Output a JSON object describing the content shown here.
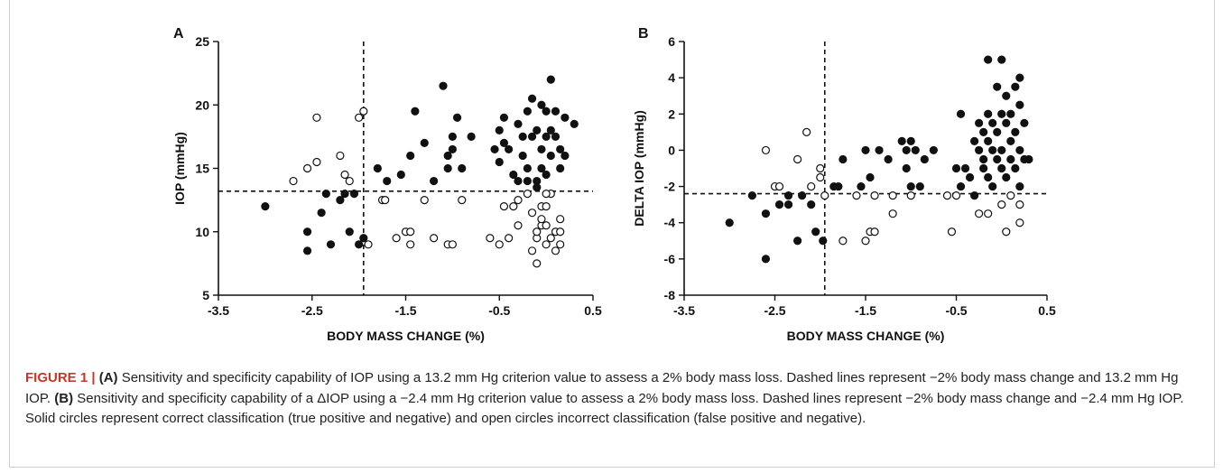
{
  "caption": {
    "label": "FIGURE 1 |",
    "a_tag": "(A)",
    "a_text": " Sensitivity and specificity capability of IOP using a 13.2 mm Hg criterion value to assess a 2% body mass loss. Dashed lines represent −2% body mass change and 13.2 mm Hg IOP. ",
    "b_tag": "(B)",
    "b_text": " Sensitivity and specificity capability of a ΔIOP using a −2.4 mm Hg criterion value to assess a 2% body mass loss. Dashed lines represent −2% body mass change and −2.4 mm Hg IOP. Solid circles represent correct classification (true positive and negative) and open circles incorrect classification (false positive and negative)."
  },
  "colors": {
    "filled": "#111111",
    "open": "#ffffff",
    "axis": "#111111"
  },
  "chart_data": [
    {
      "type": "scatter",
      "panel": "A",
      "xlabel": "BODY MASS CHANGE (%)",
      "ylabel": "IOP (mmHg)",
      "xlim": [
        -3.5,
        0.5
      ],
      "ylim": [
        5,
        25
      ],
      "xticks": [
        -3.5,
        -2.5,
        -1.5,
        -0.5,
        0.5
      ],
      "yticks": [
        5,
        10,
        15,
        20,
        25
      ],
      "xtick_labels": [
        "-3.5",
        "-2.5",
        "-1.5",
        "-0.5",
        "0.5"
      ],
      "ytick_labels": [
        "5",
        "10",
        "15",
        "20",
        "25"
      ],
      "reference_lines": {
        "x": -1.95,
        "y": 13.2
      },
      "grid": false,
      "series": [
        {
          "style": "filled",
          "points": [
            [
              -3.0,
              12.0
            ],
            [
              -2.55,
              10.0
            ],
            [
              -2.55,
              8.5
            ],
            [
              -2.4,
              11.5
            ],
            [
              -2.35,
              13.0
            ],
            [
              -2.3,
              9.0
            ],
            [
              -2.2,
              12.5
            ],
            [
              -2.15,
              13.0
            ],
            [
              -2.1,
              10.0
            ],
            [
              -2.05,
              13.0
            ],
            [
              -2.0,
              9.0
            ],
            [
              -1.95,
              9.5
            ],
            [
              -1.8,
              15.0
            ],
            [
              -1.7,
              14.0
            ],
            [
              -1.55,
              14.5
            ],
            [
              -1.45,
              16.0
            ],
            [
              -1.4,
              19.5
            ],
            [
              -1.3,
              17.0
            ],
            [
              -1.2,
              14.0
            ],
            [
              -1.1,
              21.5
            ],
            [
              -1.05,
              16.0
            ],
            [
              -1.05,
              15.0
            ],
            [
              -1.0,
              16.5
            ],
            [
              -1.0,
              17.5
            ],
            [
              -0.95,
              19.0
            ],
            [
              -0.9,
              15.0
            ],
            [
              -0.8,
              17.5
            ],
            [
              -0.55,
              16.5
            ],
            [
              -0.5,
              18.0
            ],
            [
              -0.5,
              15.5
            ],
            [
              -0.45,
              19.0
            ],
            [
              -0.45,
              17.0
            ],
            [
              -0.4,
              16.5
            ],
            [
              -0.35,
              14.5
            ],
            [
              -0.3,
              14.0
            ],
            [
              -0.3,
              18.5
            ],
            [
              -0.25,
              16.0
            ],
            [
              -0.2,
              19.5
            ],
            [
              -0.2,
              15.0
            ],
            [
              -0.15,
              20.5
            ],
            [
              -0.15,
              17.5
            ],
            [
              -0.1,
              14.0
            ],
            [
              -0.1,
              13.5
            ],
            [
              -0.05,
              20.0
            ],
            [
              -0.05,
              16.5
            ],
            [
              -0.05,
              15.0
            ],
            [
              0.0,
              19.5
            ],
            [
              0.0,
              17.5
            ],
            [
              0.0,
              14.5
            ],
            [
              0.05,
              22.0
            ],
            [
              0.05,
              18.0
            ],
            [
              0.05,
              16.0
            ],
            [
              0.1,
              19.5
            ],
            [
              0.1,
              17.5
            ],
            [
              0.15,
              16.5
            ],
            [
              0.15,
              15.0
            ],
            [
              0.2,
              19.0
            ],
            [
              0.2,
              16.0
            ],
            [
              0.3,
              18.5
            ],
            [
              -0.25,
              17.5
            ],
            [
              -0.1,
              18.0
            ],
            [
              -0.2,
              14.0
            ]
          ]
        },
        {
          "style": "open",
          "points": [
            [
              -2.7,
              14.0
            ],
            [
              -2.55,
              15.0
            ],
            [
              -2.45,
              19.0
            ],
            [
              -2.45,
              15.5
            ],
            [
              -2.2,
              16.0
            ],
            [
              -2.15,
              14.5
            ],
            [
              -2.1,
              14.0
            ],
            [
              -2.0,
              19.0
            ],
            [
              -1.95,
              19.5
            ],
            [
              -1.9,
              9.0
            ],
            [
              -1.75,
              12.5
            ],
            [
              -1.72,
              12.5
            ],
            [
              -1.6,
              9.5
            ],
            [
              -1.5,
              10.0
            ],
            [
              -1.45,
              10.0
            ],
            [
              -1.45,
              9.0
            ],
            [
              -1.3,
              12.5
            ],
            [
              -1.2,
              9.5
            ],
            [
              -1.05,
              9.0
            ],
            [
              -1.0,
              9.0
            ],
            [
              -0.9,
              12.5
            ],
            [
              -0.6,
              9.5
            ],
            [
              -0.5,
              9.0
            ],
            [
              -0.45,
              12.0
            ],
            [
              -0.4,
              9.5
            ],
            [
              -0.35,
              12.0
            ],
            [
              -0.3,
              10.5
            ],
            [
              -0.3,
              12.5
            ],
            [
              -0.2,
              13.0
            ],
            [
              -0.15,
              8.5
            ],
            [
              -0.1,
              9.5
            ],
            [
              -0.1,
              10.0
            ],
            [
              -0.1,
              7.5
            ],
            [
              -0.05,
              12.0
            ],
            [
              -0.05,
              10.5
            ],
            [
              0.0,
              12.0
            ],
            [
              0.0,
              9.0
            ],
            [
              0.0,
              10.5
            ],
            [
              0.05,
              9.5
            ],
            [
              0.05,
              13.0
            ],
            [
              0.1,
              10.0
            ],
            [
              0.1,
              8.5
            ],
            [
              0.15,
              11.0
            ],
            [
              0.15,
              9.0
            ],
            [
              0.15,
              10.0
            ],
            [
              -0.15,
              11.5
            ],
            [
              -0.05,
              11.0
            ],
            [
              0.0,
              13.0
            ]
          ]
        }
      ]
    },
    {
      "type": "scatter",
      "panel": "B",
      "xlabel": "BODY MASS CHANGE (%)",
      "ylabel": "DELTA IOP (mmHg)",
      "xlim": [
        -3.5,
        0.5
      ],
      "ylim": [
        -8,
        6
      ],
      "xticks": [
        -3.5,
        -2.5,
        -1.5,
        -0.5,
        0.5
      ],
      "yticks": [
        -8,
        -6,
        -4,
        -2,
        0,
        2,
        4,
        6
      ],
      "xtick_labels": [
        "-3.5",
        "-2.5",
        "-1.5",
        "-0.5",
        "0.5"
      ],
      "ytick_labels": [
        "-8",
        "-6",
        "-4",
        "-2",
        "0",
        "2",
        "4",
        "6"
      ],
      "reference_lines": {
        "x": -1.95,
        "y": -2.4
      },
      "grid": false,
      "series": [
        {
          "style": "filled",
          "points": [
            [
              -3.0,
              -4.0
            ],
            [
              -2.75,
              -2.5
            ],
            [
              -2.6,
              -3.5
            ],
            [
              -2.6,
              -6.0
            ],
            [
              -2.45,
              -3.0
            ],
            [
              -2.35,
              -2.5
            ],
            [
              -2.35,
              -3.0
            ],
            [
              -2.25,
              -5.0
            ],
            [
              -2.2,
              -2.5
            ],
            [
              -2.1,
              -3.0
            ],
            [
              -2.05,
              -4.5
            ],
            [
              -1.97,
              -5.0
            ],
            [
              -1.85,
              -2.0
            ],
            [
              -1.8,
              -2.0
            ],
            [
              -1.75,
              -0.5
            ],
            [
              -1.55,
              -2.0
            ],
            [
              -1.5,
              0.0
            ],
            [
              -1.45,
              -1.5
            ],
            [
              -1.35,
              0.0
            ],
            [
              -1.25,
              -0.5
            ],
            [
              -1.1,
              0.5
            ],
            [
              -1.05,
              -1.0
            ],
            [
              -1.05,
              0.0
            ],
            [
              -1.0,
              -2.0
            ],
            [
              -1.0,
              0.5
            ],
            [
              -0.95,
              0.0
            ],
            [
              -0.9,
              -2.0
            ],
            [
              -0.85,
              -0.5
            ],
            [
              -0.75,
              0.0
            ],
            [
              -0.5,
              -1.0
            ],
            [
              -0.45,
              -2.0
            ],
            [
              -0.45,
              2.0
            ],
            [
              -0.4,
              -1.0
            ],
            [
              -0.35,
              -1.5
            ],
            [
              -0.3,
              0.5
            ],
            [
              -0.3,
              -2.5
            ],
            [
              -0.25,
              0.0
            ],
            [
              -0.2,
              -0.5
            ],
            [
              -0.2,
              -1.0
            ],
            [
              -0.2,
              1.0
            ],
            [
              -0.15,
              2.0
            ],
            [
              -0.15,
              5.0
            ],
            [
              -0.15,
              0.5
            ],
            [
              -0.1,
              1.5
            ],
            [
              -0.1,
              0.0
            ],
            [
              -0.1,
              -2.0
            ],
            [
              -0.05,
              3.5
            ],
            [
              -0.05,
              1.0
            ],
            [
              -0.05,
              -0.5
            ],
            [
              0.0,
              2.0
            ],
            [
              0.0,
              5.0
            ],
            [
              0.0,
              0.0
            ],
            [
              0.0,
              -1.0
            ],
            [
              0.05,
              1.5
            ],
            [
              0.05,
              -1.5
            ],
            [
              0.05,
              3.0
            ],
            [
              0.1,
              2.0
            ],
            [
              0.1,
              0.5
            ],
            [
              0.1,
              -0.5
            ],
            [
              0.15,
              3.5
            ],
            [
              0.15,
              1.0
            ],
            [
              0.15,
              -1.0
            ],
            [
              0.2,
              4.0
            ],
            [
              0.2,
              2.5
            ],
            [
              0.2,
              0.0
            ],
            [
              0.2,
              -2.0
            ],
            [
              0.25,
              1.5
            ],
            [
              0.25,
              -0.5
            ],
            [
              0.3,
              -0.5
            ],
            [
              -0.25,
              1.5
            ],
            [
              -0.15,
              -1.5
            ]
          ]
        },
        {
          "style": "open",
          "points": [
            [
              -2.6,
              0.0
            ],
            [
              -2.5,
              -2.0
            ],
            [
              -2.45,
              -2.0
            ],
            [
              -2.25,
              -0.5
            ],
            [
              -2.15,
              1.0
            ],
            [
              -2.1,
              -2.0
            ],
            [
              -2.0,
              -1.5
            ],
            [
              -2.0,
              -1.0
            ],
            [
              -1.95,
              -2.5
            ],
            [
              -1.75,
              -5.0
            ],
            [
              -1.6,
              -2.5
            ],
            [
              -1.5,
              -5.0
            ],
            [
              -1.45,
              -4.5
            ],
            [
              -1.4,
              -4.5
            ],
            [
              -1.4,
              -2.5
            ],
            [
              -1.2,
              -3.5
            ],
            [
              -1.2,
              -2.5
            ],
            [
              -1.0,
              -2.5
            ],
            [
              -0.6,
              -2.5
            ],
            [
              -0.55,
              -4.5
            ],
            [
              -0.5,
              -2.5
            ],
            [
              -0.25,
              -3.5
            ],
            [
              -0.15,
              -3.5
            ],
            [
              0.0,
              -3.0
            ],
            [
              0.05,
              -4.5
            ],
            [
              0.1,
              -2.5
            ],
            [
              0.2,
              -3.0
            ],
            [
              0.2,
              -4.0
            ]
          ]
        }
      ]
    }
  ],
  "panels": [
    {
      "letter": "A"
    },
    {
      "letter": "B"
    }
  ]
}
